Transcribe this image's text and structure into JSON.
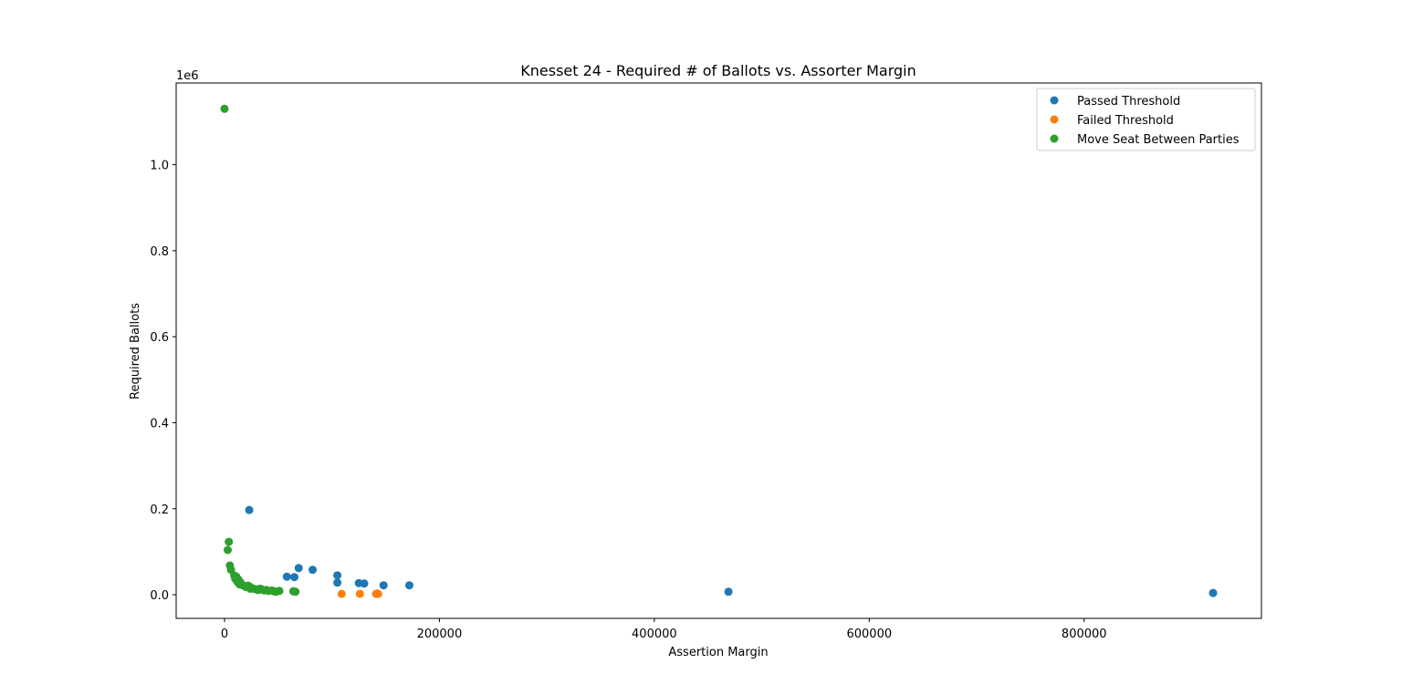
{
  "chart_data": {
    "type": "scatter",
    "title": "Knesset 24 - Required # of Ballots vs. Assorter Margin",
    "xlabel": "Assertion Margin",
    "ylabel": "Required Ballots",
    "y_offset_label": "1e6",
    "xlim": [
      -45000,
      965000
    ],
    "ylim": [
      -55000,
      1190000
    ],
    "xticks": [
      0,
      200000,
      400000,
      600000,
      800000
    ],
    "xtick_labels": [
      "0",
      "200000",
      "400000",
      "600000",
      "800000"
    ],
    "yticks": [
      0,
      200000,
      400000,
      600000,
      800000,
      1000000
    ],
    "ytick_labels": [
      "0.0",
      "0.2",
      "0.4",
      "0.6",
      "0.8",
      "1.0"
    ],
    "grid": false,
    "legend_position": "top-right",
    "series": [
      {
        "name": "Passed Threshold",
        "color": "#1f77b4",
        "points": [
          [
            23000,
            197000
          ],
          [
            58000,
            42000
          ],
          [
            65000,
            41000
          ],
          [
            69000,
            62000
          ],
          [
            82000,
            58000
          ],
          [
            105000,
            45000
          ],
          [
            105000,
            28000
          ],
          [
            125000,
            27000
          ],
          [
            130000,
            26000
          ],
          [
            148000,
            22000
          ],
          [
            172000,
            22000
          ],
          [
            469000,
            7000
          ],
          [
            920000,
            4000
          ]
        ]
      },
      {
        "name": "Failed Threshold",
        "color": "#ff7f0e",
        "points": [
          [
            109000,
            2000
          ],
          [
            126000,
            2000
          ],
          [
            141000,
            2000
          ],
          [
            143000,
            2000
          ],
          [
            142000,
            3000
          ]
        ]
      },
      {
        "name": "Move Seat Between Parties",
        "color": "#2ca02c",
        "points": [
          [
            0,
            1130000
          ],
          [
            4000,
            123000
          ],
          [
            3000,
            104000
          ],
          [
            5000,
            68000
          ],
          [
            6000,
            58000
          ],
          [
            9000,
            45000
          ],
          [
            11000,
            42000
          ],
          [
            10000,
            37000
          ],
          [
            13000,
            35000
          ],
          [
            12000,
            30000
          ],
          [
            15000,
            28000
          ],
          [
            14000,
            24000
          ],
          [
            17000,
            22000
          ],
          [
            19000,
            20000
          ],
          [
            20000,
            18000
          ],
          [
            22000,
            21000
          ],
          [
            24000,
            18000
          ],
          [
            24000,
            14000
          ],
          [
            27000,
            14000
          ],
          [
            29000,
            13000
          ],
          [
            31000,
            11000
          ],
          [
            33000,
            14000
          ],
          [
            35000,
            12000
          ],
          [
            37000,
            10000
          ],
          [
            39000,
            11000
          ],
          [
            41000,
            9000
          ],
          [
            44000,
            10000
          ],
          [
            46000,
            8000
          ],
          [
            48000,
            7000
          ],
          [
            51000,
            9000
          ],
          [
            64000,
            8000
          ],
          [
            66000,
            7000
          ]
        ]
      }
    ]
  }
}
